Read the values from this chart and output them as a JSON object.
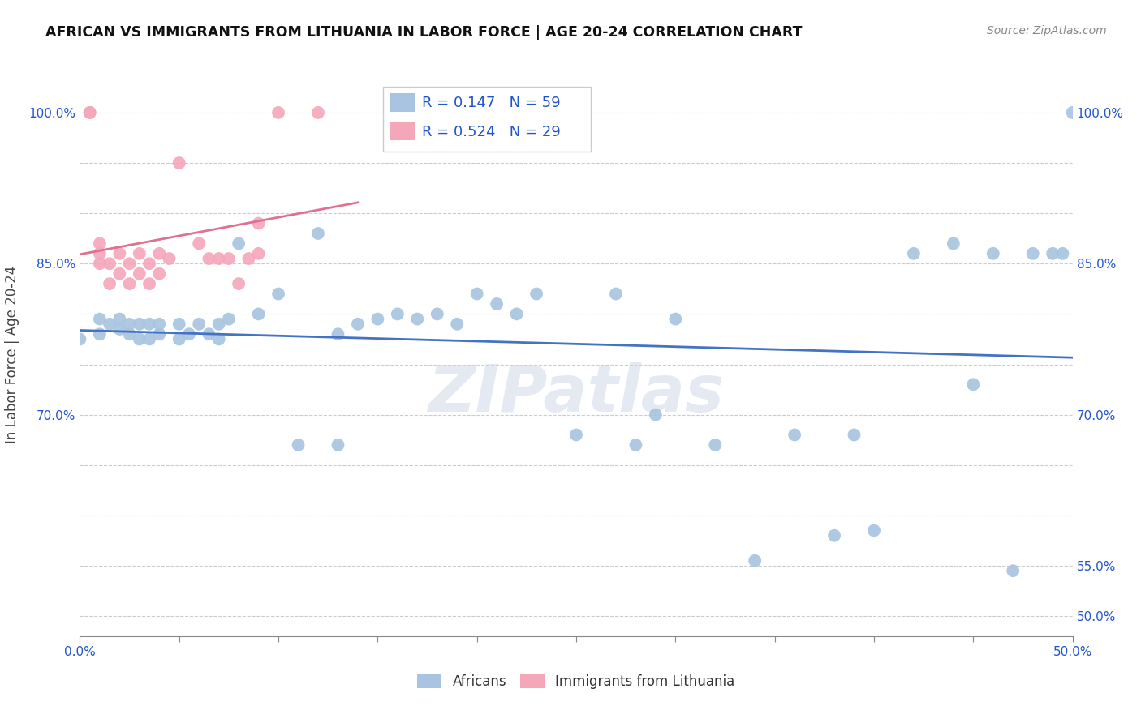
{
  "title": "AFRICAN VS IMMIGRANTS FROM LITHUANIA IN LABOR FORCE | AGE 20-24 CORRELATION CHART",
  "source": "Source: ZipAtlas.com",
  "ylabel": "In Labor Force | Age 20-24",
  "xlim": [
    0.0,
    0.5
  ],
  "ylim": [
    0.48,
    1.04
  ],
  "x_ticks": [
    0.0,
    0.05,
    0.1,
    0.15,
    0.2,
    0.25,
    0.3,
    0.35,
    0.4,
    0.45,
    0.5
  ],
  "x_tick_labels": [
    "0.0%",
    "",
    "",
    "",
    "",
    "",
    "",
    "",
    "",
    "",
    "50.0%"
  ],
  "y_ticks": [
    0.5,
    0.55,
    0.6,
    0.65,
    0.7,
    0.75,
    0.8,
    0.85,
    0.9,
    0.95,
    1.0
  ],
  "y_tick_labels_left": [
    "",
    "",
    "",
    "",
    "70.0%",
    "",
    "",
    "85.0%",
    "",
    "",
    "100.0%"
  ],
  "y_tick_labels_right": [
    "50.0%",
    "55.0%",
    "",
    "",
    "70.0%",
    "",
    "",
    "85.0%",
    "",
    "",
    "100.0%"
  ],
  "legend_africans": "Africans",
  "legend_lithuania": "Immigrants from Lithuania",
  "R_african": 0.147,
  "N_african": 59,
  "R_lithuania": 0.524,
  "N_lithuania": 29,
  "blue_color": "#a8c4e0",
  "pink_color": "#f4a7b9",
  "blue_line_color": "#4472c4",
  "pink_line_color": "#e07090",
  "watermark": "ZIPatlas",
  "africans_x": [
    0.0,
    0.01,
    0.01,
    0.015,
    0.02,
    0.02,
    0.025,
    0.025,
    0.03,
    0.03,
    0.035,
    0.035,
    0.04,
    0.04,
    0.05,
    0.05,
    0.055,
    0.06,
    0.065,
    0.07,
    0.07,
    0.075,
    0.08,
    0.09,
    0.1,
    0.11,
    0.12,
    0.13,
    0.13,
    0.14,
    0.15,
    0.16,
    0.17,
    0.18,
    0.19,
    0.2,
    0.21,
    0.22,
    0.23,
    0.25,
    0.27,
    0.28,
    0.29,
    0.3,
    0.32,
    0.34,
    0.36,
    0.38,
    0.39,
    0.4,
    0.42,
    0.44,
    0.45,
    0.46,
    0.47,
    0.48,
    0.49,
    0.495,
    0.5
  ],
  "africans_y": [
    0.775,
    0.78,
    0.795,
    0.79,
    0.785,
    0.795,
    0.78,
    0.79,
    0.775,
    0.79,
    0.775,
    0.79,
    0.78,
    0.79,
    0.775,
    0.79,
    0.78,
    0.79,
    0.78,
    0.775,
    0.79,
    0.795,
    0.87,
    0.8,
    0.82,
    0.67,
    0.88,
    0.78,
    0.67,
    0.79,
    0.795,
    0.8,
    0.795,
    0.8,
    0.79,
    0.82,
    0.81,
    0.8,
    0.82,
    0.68,
    0.82,
    0.67,
    0.7,
    0.795,
    0.67,
    0.555,
    0.68,
    0.58,
    0.68,
    0.585,
    0.86,
    0.87,
    0.73,
    0.86,
    0.545,
    0.86,
    0.86,
    0.86,
    1.0
  ],
  "lithuania_x": [
    0.005,
    0.005,
    0.01,
    0.01,
    0.01,
    0.015,
    0.015,
    0.02,
    0.02,
    0.025,
    0.025,
    0.03,
    0.03,
    0.035,
    0.035,
    0.04,
    0.04,
    0.045,
    0.05,
    0.06,
    0.065,
    0.07,
    0.075,
    0.08,
    0.085,
    0.09,
    0.09,
    0.1,
    0.12
  ],
  "lithuania_y": [
    1.0,
    1.0,
    0.85,
    0.86,
    0.87,
    0.83,
    0.85,
    0.84,
    0.86,
    0.83,
    0.85,
    0.84,
    0.86,
    0.83,
    0.85,
    0.84,
    0.86,
    0.855,
    0.95,
    0.87,
    0.855,
    0.855,
    0.855,
    0.83,
    0.855,
    0.86,
    0.89,
    1.0,
    1.0
  ]
}
